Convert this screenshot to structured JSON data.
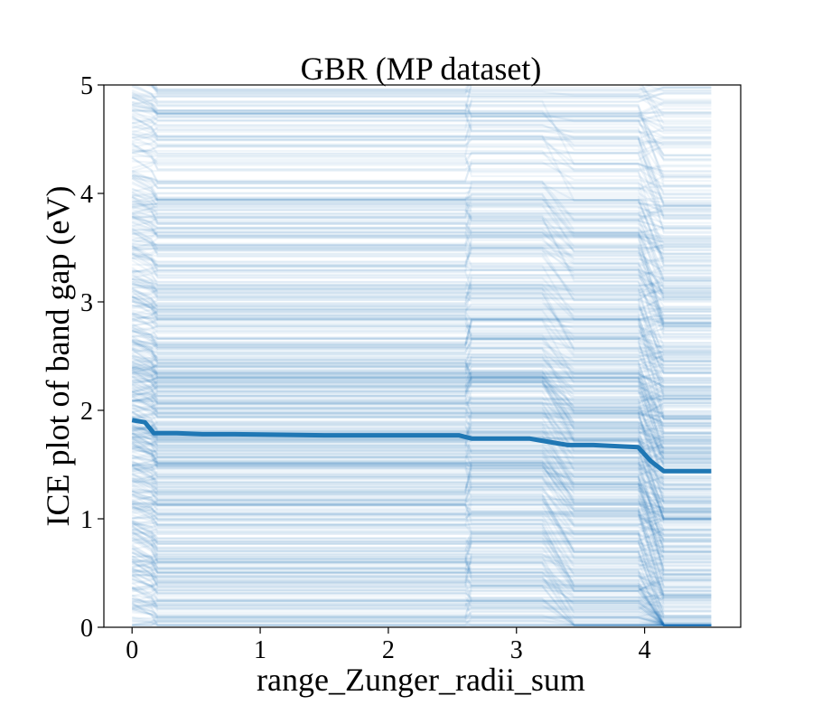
{
  "chart_data": {
    "type": "line",
    "title": "GBR (MP dataset)",
    "xlabel": "range_Zunger_radii_sum",
    "ylabel": "ICE plot of band gap (eV)",
    "xlim": [
      -0.22,
      4.75
    ],
    "ylim": [
      0,
      5
    ],
    "xticks": [
      0,
      1,
      2,
      3,
      4
    ],
    "yticks": [
      0,
      1,
      2,
      3,
      4,
      5
    ],
    "grid": false,
    "legend": "none",
    "colors": {
      "ice": "#1f77b4",
      "pdp": "#1f77b4",
      "axes": "#000000"
    },
    "ice_curves": {
      "description_count": 700,
      "x_range": [
        0,
        4.52
      ],
      "style": "thin translucent lines, one per sample",
      "value_range": [
        0,
        5
      ]
    },
    "series": [
      {
        "name": "",
        "style": "bold",
        "x": [
          0.0,
          0.1,
          0.17,
          0.35,
          0.55,
          0.8,
          1.5,
          2.0,
          2.55,
          2.65,
          3.1,
          3.2,
          3.4,
          3.6,
          3.95,
          4.05,
          4.15,
          4.52
        ],
        "y": [
          1.91,
          1.89,
          1.79,
          1.79,
          1.78,
          1.78,
          1.77,
          1.77,
          1.77,
          1.74,
          1.74,
          1.72,
          1.68,
          1.68,
          1.66,
          1.53,
          1.44,
          1.44
        ]
      }
    ]
  }
}
